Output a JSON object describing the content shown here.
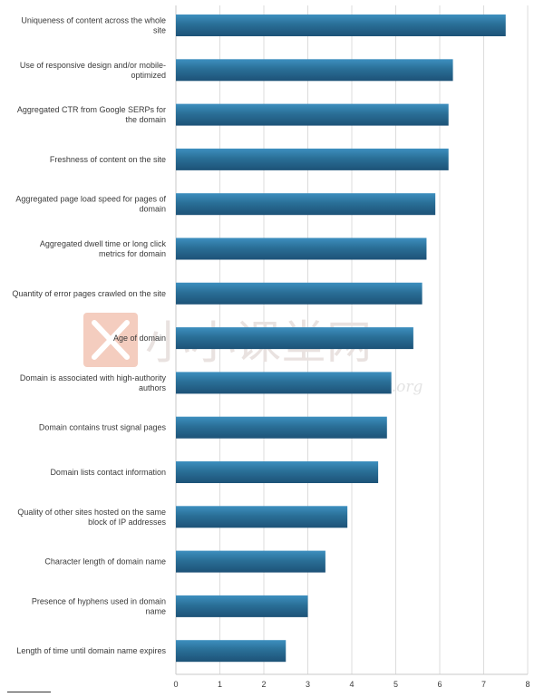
{
  "chart_data": {
    "type": "bar",
    "orientation": "horizontal",
    "categories": [
      [
        "Uniqueness of content across the whole",
        "site"
      ],
      [
        "Use of responsive design and/or mobile-",
        "optimized"
      ],
      [
        "Aggregated CTR from Google SERPs for",
        "the domain"
      ],
      [
        "Freshness of content on the site"
      ],
      [
        "Aggregated page load speed for pages of",
        "domain"
      ],
      [
        "Aggregated dwell time or long click",
        "metrics for domain"
      ],
      [
        "Quantity of error pages crawled on the site"
      ],
      [
        "Age of domain"
      ],
      [
        "Domain is associated with high-authority",
        "authors"
      ],
      [
        "Domain contains trust signal pages"
      ],
      [
        "Domain lists contact information"
      ],
      [
        "Quality of other sites hosted on the same",
        "block of IP addresses"
      ],
      [
        "Character length of domain name"
      ],
      [
        "Presence of hyphens used in domain",
        "name"
      ],
      [
        "Length of time until domain name expires"
      ]
    ],
    "values": [
      7.5,
      6.3,
      6.2,
      6.2,
      5.9,
      5.7,
      5.6,
      5.4,
      4.9,
      4.8,
      4.6,
      3.9,
      3.4,
      3.0,
      2.5
    ],
    "xlim": [
      0,
      8
    ],
    "ticks": [
      "0",
      "1",
      "2",
      "3",
      "4",
      "5",
      "6",
      "7",
      "8"
    ],
    "grid": true,
    "bar_color": "#2a6f97",
    "bar_color_light": "#3d8fbf",
    "bar_color_dark": "#1d5277"
  },
  "watermark": {
    "text": "小小课堂网",
    "url": "www.sxxt.org",
    "logo_color": "#f4cdbf"
  }
}
